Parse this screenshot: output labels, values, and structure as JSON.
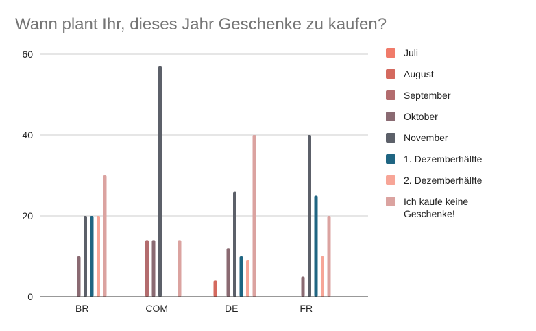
{
  "chart_data": {
    "type": "bar",
    "title": "Wann plant Ihr, dieses Jahr Geschenke zu kaufen?",
    "xlabel": "",
    "ylabel": "",
    "categories": [
      "BR",
      "COM",
      "DE",
      "FR"
    ],
    "ylim": [
      0,
      60
    ],
    "yticks": [
      0,
      20,
      40,
      60
    ],
    "grid": true,
    "legend_position": "right",
    "series": [
      {
        "name": "Juli",
        "color": "#f07b6a",
        "values": [
          0,
          0,
          0,
          0
        ]
      },
      {
        "name": "August",
        "color": "#d4695e",
        "values": [
          0,
          0,
          4,
          0
        ]
      },
      {
        "name": "September",
        "color": "#b36c6e",
        "values": [
          0,
          14,
          0,
          0
        ]
      },
      {
        "name": "Oktober",
        "color": "#8a6a72",
        "values": [
          10,
          14,
          12,
          5
        ]
      },
      {
        "name": "November",
        "color": "#5c6069",
        "values": [
          20,
          57,
          26,
          40
        ]
      },
      {
        "name": "1. Dezemberhälfte",
        "color": "#1f6582",
        "values": [
          20,
          0,
          10,
          25
        ]
      },
      {
        "name": "2. Dezemberhälfte",
        "color": "#f7a597",
        "values": [
          20,
          0,
          9,
          10
        ]
      },
      {
        "name": "Ich kaufe keine Geschenke!",
        "color": "#dba3a0",
        "values": [
          30,
          14,
          40,
          20
        ]
      }
    ]
  }
}
